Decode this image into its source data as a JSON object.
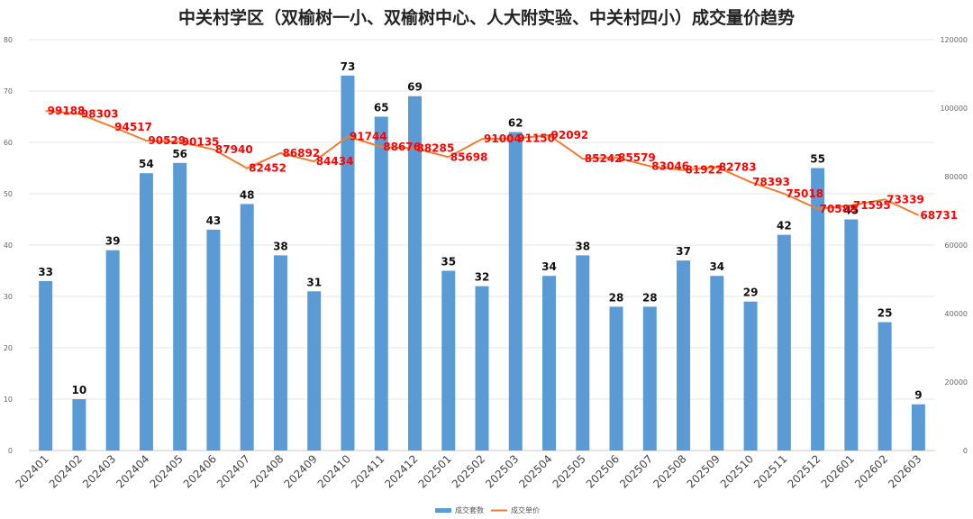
{
  "chart_data": {
    "type": "bar+line",
    "title": "中关村学区（双榆树一小、双榆树中心、人大附实验、中关村四小）成交量价趋势",
    "categories": [
      "202401",
      "202402",
      "202403",
      "202404",
      "202405",
      "202406",
      "202407",
      "202408",
      "202409",
      "202410",
      "202411",
      "202412",
      "202501",
      "202502",
      "202503",
      "202504",
      "202505",
      "202506",
      "202507",
      "202508",
      "202509",
      "202510",
      "202511",
      "202512",
      "202601",
      "202602",
      "202603"
    ],
    "series": [
      {
        "name": "成交套数",
        "type": "bar",
        "axis": "left",
        "color": "#5b9bd5",
        "values": [
          33,
          10,
          39,
          54,
          56,
          43,
          48,
          38,
          31,
          73,
          65,
          69,
          35,
          32,
          62,
          34,
          38,
          28,
          28,
          37,
          34,
          29,
          42,
          55,
          45,
          25,
          9
        ]
      },
      {
        "name": "成交单价",
        "type": "line",
        "axis": "right",
        "color": "#ed7d31",
        "values": [
          99188,
          98303,
          94517,
          90529,
          90135,
          87940,
          82452,
          86892,
          84434,
          91744,
          88676,
          88285,
          85698,
          91004,
          91150,
          92092,
          85242,
          85579,
          83046,
          81922,
          82783,
          78393,
          75018,
          70588,
          71595,
          73339,
          68731
        ]
      }
    ],
    "y_left": {
      "min": 0,
      "max": 80,
      "ticks": [
        "0",
        "10",
        "20",
        "30",
        "40",
        "50",
        "60",
        "70",
        "80"
      ]
    },
    "y_right": {
      "min": 0,
      "max": 120000,
      "ticks": [
        "0",
        "20000",
        "40000",
        "60000",
        "80000",
        "100000",
        "120000"
      ]
    },
    "grid": true,
    "legend_position": "bottom"
  }
}
